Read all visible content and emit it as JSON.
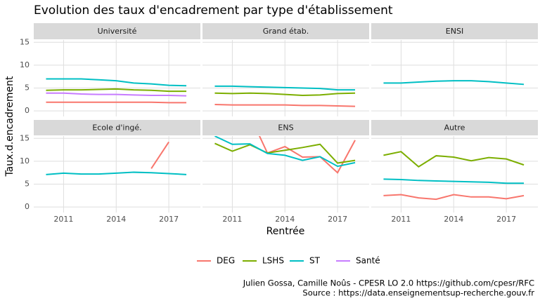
{
  "chart_data": {
    "type": "line",
    "title": "Evolution des taux d'encadrement par type d'établissement",
    "x_label": "Rentrée",
    "y_label": "Taux.d.encadrement",
    "caption": [
      "Julien Gossa, Camille Noûs - CPESR LO 2.0 https://github.com/cpesr/RFC",
      "Source : https://data.enseignementsup-recherche.gouv.fr"
    ],
    "x": [
      2010,
      2011,
      2012,
      2013,
      2014,
      2015,
      2016,
      2017,
      2018
    ],
    "xlim": [
      2009.3,
      2018.8
    ],
    "xticks": [
      2011,
      2014,
      2017
    ],
    "ylim": [
      -1.2,
      15.5
    ],
    "yticks": [
      0,
      5,
      10,
      15
    ],
    "grid": true,
    "legend": "bottom",
    "series": [
      {
        "name": "DEG",
        "color": "#F8766D"
      },
      {
        "name": "LSHS",
        "color": "#7CAE00"
      },
      {
        "name": "ST",
        "color": "#00BFC4"
      },
      {
        "name": "Santé",
        "color": "#C77CFF"
      }
    ],
    "facets": [
      {
        "name": "Université",
        "series": [
          {
            "values": [
              1.9,
              1.9,
              1.9,
              1.9,
              1.9,
              1.9,
              1.9,
              1.8,
              1.8
            ]
          },
          {
            "values": [
              4.5,
              4.6,
              4.6,
              4.7,
              4.8,
              4.6,
              4.5,
              4.3,
              4.3
            ]
          },
          {
            "values": [
              7.0,
              7.0,
              7.0,
              6.8,
              6.6,
              6.1,
              5.9,
              5.6,
              5.5
            ]
          },
          {
            "values": [
              3.9,
              3.9,
              3.7,
              3.6,
              3.6,
              3.5,
              3.4,
              3.4,
              3.3
            ]
          }
        ]
      },
      {
        "name": "Grand étab.",
        "series": [
          {
            "values": [
              1.4,
              1.3,
              1.3,
              1.3,
              1.3,
              1.2,
              1.2,
              1.1,
              1.0
            ]
          },
          {
            "values": [
              3.9,
              3.8,
              3.9,
              3.8,
              3.6,
              3.4,
              3.5,
              3.8,
              3.9
            ]
          },
          {
            "values": [
              5.4,
              5.4,
              5.3,
              5.2,
              5.1,
              5.0,
              4.9,
              4.6,
              4.6
            ]
          },
          {
            "values": [
              null,
              null,
              null,
              null,
              null,
              null,
              null,
              null,
              null
            ]
          }
        ]
      },
      {
        "name": "ENSI",
        "series": [
          {
            "values": [
              null,
              null,
              null,
              null,
              null,
              null,
              null,
              null,
              null
            ]
          },
          {
            "values": [
              null,
              null,
              null,
              null,
              null,
              null,
              null,
              null,
              null
            ]
          },
          {
            "values": [
              6.1,
              6.1,
              6.3,
              6.5,
              6.6,
              6.6,
              6.4,
              6.1,
              5.8
            ]
          },
          {
            "values": [
              null,
              null,
              null,
              null,
              null,
              null,
              null,
              null,
              null
            ]
          }
        ]
      },
      {
        "name": "Ecole d'ingé.",
        "series": [
          {
            "values": [
              null,
              null,
              null,
              null,
              null,
              null,
              8.4,
              14.2,
              null
            ]
          },
          {
            "values": [
              null,
              null,
              null,
              null,
              null,
              null,
              null,
              null,
              null
            ]
          },
          {
            "values": [
              7.1,
              7.4,
              7.2,
              7.2,
              7.4,
              7.6,
              7.5,
              7.3,
              7.1
            ]
          },
          {
            "values": [
              null,
              null,
              null,
              null,
              null,
              null,
              null,
              null,
              null
            ]
          }
        ]
      },
      {
        "name": "ENS",
        "series": [
          {
            "values": [
              null,
              null,
              20,
              11.8,
              13.2,
              10.9,
              11.0,
              7.5,
              14.6
            ]
          },
          {
            "values": [
              13.9,
              12.2,
              13.6,
              11.8,
              12.4,
              13.0,
              13.7,
              9.6,
              10.2
            ]
          },
          {
            "values": [
              15.5,
              13.7,
              13.8,
              11.7,
              11.3,
              10.2,
              11.0,
              8.9,
              9.7
            ]
          },
          {
            "values": [
              null,
              null,
              null,
              null,
              null,
              null,
              null,
              null,
              null
            ]
          }
        ]
      },
      {
        "name": "Autre",
        "series": [
          {
            "values": [
              2.5,
              2.7,
              2.0,
              1.7,
              2.7,
              2.2,
              2.2,
              1.8,
              2.5
            ]
          },
          {
            "values": [
              11.3,
              12.1,
              8.8,
              11.2,
              10.9,
              10.1,
              10.8,
              10.5,
              9.2
            ]
          },
          {
            "values": [
              6.1,
              6.0,
              5.8,
              5.7,
              5.6,
              5.5,
              5.4,
              5.2,
              5.2
            ]
          },
          {
            "values": [
              null,
              null,
              null,
              null,
              null,
              null,
              null,
              null,
              null
            ]
          }
        ]
      }
    ]
  }
}
